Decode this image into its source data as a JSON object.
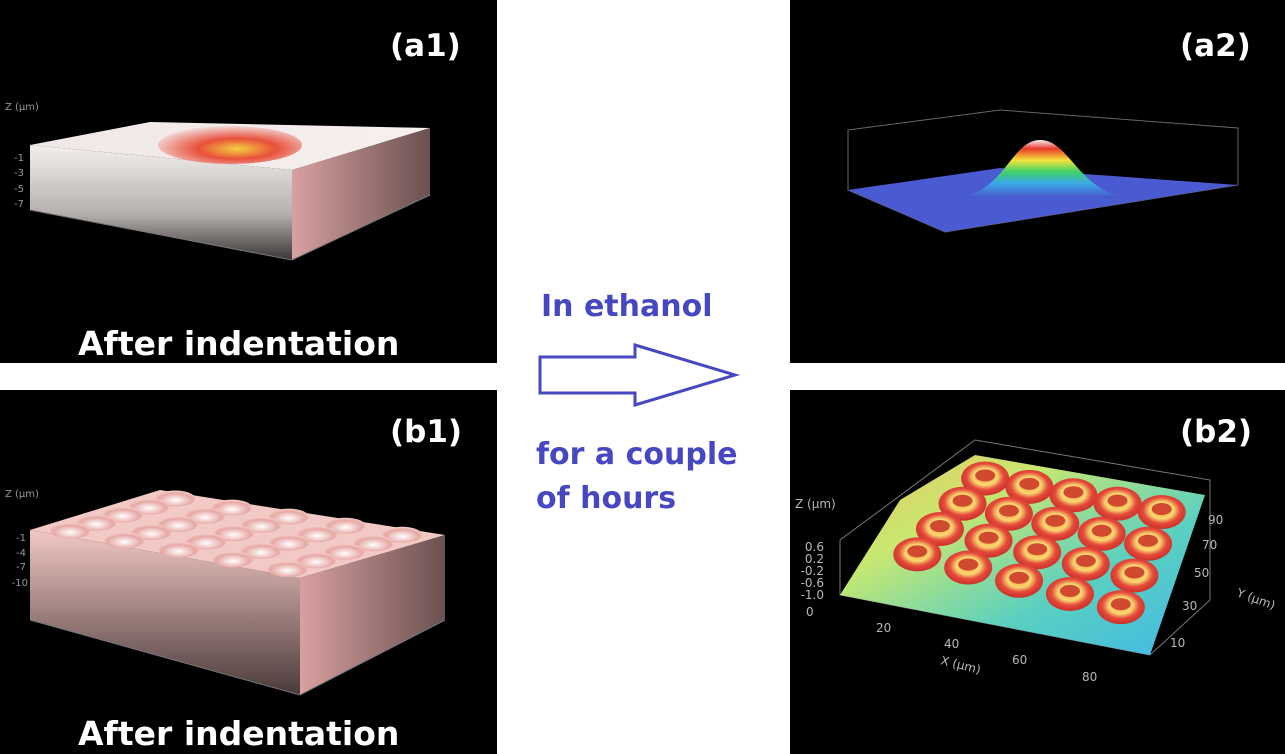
{
  "panels": [
    {
      "label": "(a1)",
      "caption": "After indentation",
      "z_axis": "Z (μm)",
      "z_ticks": [
        "-1",
        "-3",
        "-5",
        "-7"
      ]
    },
    {
      "label": "(b1)",
      "caption": "After indentation",
      "z_axis": "Z (μm)",
      "z_ticks": [
        "-1",
        "-4",
        "-7",
        "-10"
      ]
    },
    {
      "label": "(a2)"
    },
    {
      "label": "(b2)",
      "z_axis": "Z (μm)",
      "z_ticks": [
        "0.6",
        "0.2",
        "-0.2",
        "-0.6",
        "-1.0"
      ],
      "origin": "0",
      "x_axis": "X (μm)",
      "x_ticks": [
        "20",
        "40",
        "60",
        "80"
      ],
      "y_axis": "Y (μm)",
      "y_ticks": [
        "10",
        "30",
        "50",
        "70",
        "90"
      ]
    }
  ],
  "arrow": {
    "above": "In ethanol",
    "below": [
      "for a couple",
      "of hours"
    ]
  }
}
